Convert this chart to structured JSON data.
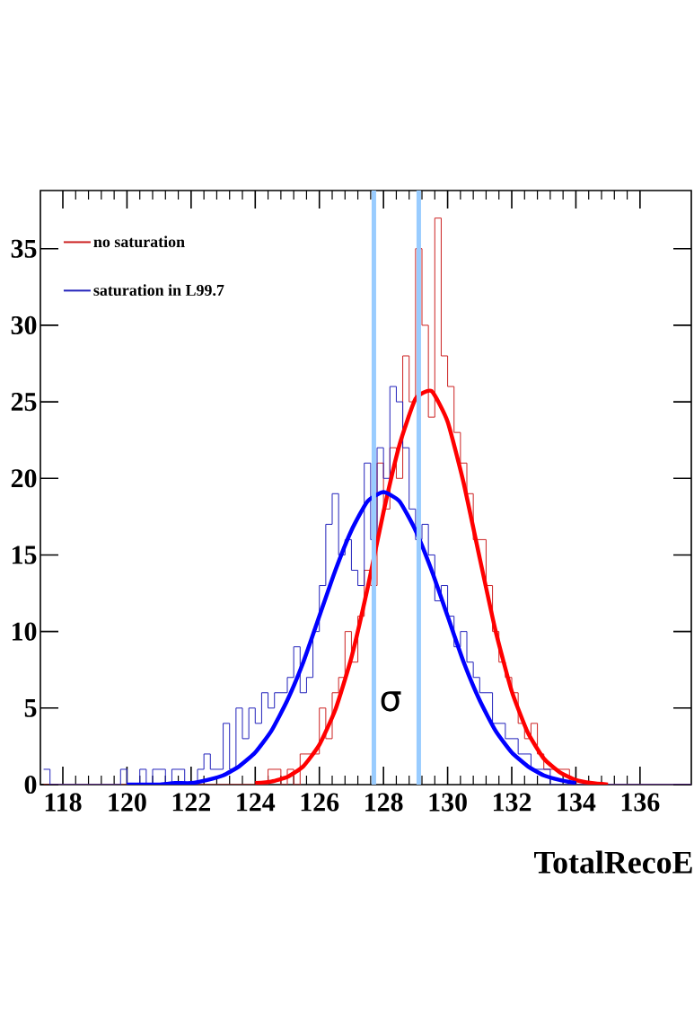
{
  "chart_data": {
    "type": "histogram",
    "xlabel": "TotalRecoE",
    "xlim": [
      117.3,
      137.6
    ],
    "ylim": [
      0,
      38.8
    ],
    "xticks": [
      118,
      120,
      122,
      124,
      126,
      128,
      130,
      132,
      134,
      136
    ],
    "yticks": [
      0,
      5,
      10,
      15,
      20,
      25,
      30,
      35
    ],
    "legend": "top left",
    "bins": [
      117.4,
      117.6,
      117.8,
      118.0,
      118.2,
      118.4,
      118.6,
      118.8,
      119.0,
      119.2,
      119.4,
      119.6,
      119.8,
      120.0,
      120.2,
      120.4,
      120.6,
      120.8,
      121.0,
      121.2,
      121.4,
      121.6,
      121.8,
      122.0,
      122.2,
      122.4,
      122.6,
      122.8,
      123.0,
      123.2,
      123.4,
      123.6,
      123.8,
      124.0,
      124.2,
      124.4,
      124.6,
      124.8,
      125.0,
      125.2,
      125.4,
      125.6,
      125.8,
      126.0,
      126.2,
      126.4,
      126.6,
      126.8,
      127.0,
      127.2,
      127.4,
      127.6,
      127.8,
      128.0,
      128.2,
      128.4,
      128.6,
      128.8,
      129.0,
      129.2,
      129.4,
      129.6,
      129.8,
      130.0,
      130.2,
      130.4,
      130.6,
      130.8,
      131.0,
      131.2,
      131.4,
      131.6,
      131.8,
      132.0,
      132.2,
      132.4,
      132.6,
      132.8,
      133.0,
      133.2,
      133.4,
      133.6,
      133.8,
      134.0,
      134.2,
      134.4,
      134.6,
      134.8,
      135.0,
      135.2,
      135.4,
      135.6,
      135.8,
      136.0,
      136.2,
      136.4,
      136.6,
      136.8,
      137.0,
      137.2,
      137.4,
      137.6
    ],
    "series": [
      {
        "name": "no saturation",
        "color": "#cc2222",
        "values": [
          0,
          0,
          0,
          0,
          0,
          0,
          0,
          0,
          0,
          0,
          0,
          0,
          0,
          0,
          0,
          0,
          0,
          0,
          0,
          0,
          0,
          0,
          0,
          0,
          0,
          0,
          0,
          0,
          0,
          0,
          0,
          0,
          0,
          0,
          0,
          1,
          1,
          0,
          1,
          0,
          2,
          2,
          2,
          5,
          3,
          6,
          7,
          10,
          8,
          11,
          14,
          13,
          21,
          18,
          22,
          20,
          28,
          25,
          35,
          30,
          24,
          37,
          28,
          26,
          23,
          21,
          19,
          16,
          16,
          13,
          10,
          8,
          7,
          6,
          4,
          3,
          4,
          2,
          1,
          1,
          1,
          1,
          0,
          0,
          0,
          0,
          0,
          0,
          0,
          0,
          0,
          0,
          0,
          0,
          0,
          0,
          0,
          0,
          0,
          0,
          0
        ]
      },
      {
        "name": "saturation in L99.7",
        "color": "#2222bb",
        "values": [
          1,
          0,
          0,
          0,
          0,
          0,
          0,
          0,
          0,
          0,
          0,
          0,
          1,
          0,
          0,
          1,
          0,
          1,
          1,
          0,
          1,
          1,
          0,
          0,
          1,
          2,
          1,
          1,
          4,
          1,
          5,
          3,
          5,
          4,
          6,
          5,
          6,
          6,
          7,
          9,
          6,
          7,
          10,
          13,
          17,
          19,
          15,
          16,
          14,
          13,
          21,
          16,
          22,
          20,
          26,
          25,
          22,
          18,
          16,
          17,
          15,
          12,
          13,
          11,
          9,
          10,
          8,
          7,
          6,
          6,
          4,
          4,
          3,
          3,
          2,
          2,
          1,
          1,
          1,
          0,
          0,
          0,
          0,
          0,
          0,
          0,
          0,
          0,
          0,
          0,
          0,
          0,
          0,
          0,
          0,
          0,
          0,
          0,
          0,
          0,
          0
        ]
      },
      {
        "type": "line",
        "color": "#ff0000",
        "x": [
          124,
          124.5,
          125,
          125.5,
          126,
          126.5,
          127,
          127.5,
          128,
          128.5,
          129,
          129.5,
          130,
          130.5,
          131,
          131.5,
          132,
          132.5,
          133,
          133.5,
          134,
          134.5,
          135
        ],
        "values": [
          0.1,
          0.2,
          0.5,
          1.2,
          2.6,
          4.9,
          8.3,
          12.8,
          17.8,
          22.2,
          25.2,
          25.7,
          23.7,
          19.7,
          14.8,
          10.0,
          6.1,
          3.4,
          1.7,
          0.8,
          0.3,
          0.1,
          0.0
        ]
      },
      {
        "type": "line",
        "color": "#0000ff",
        "x": [
          120,
          120.5,
          121,
          121.5,
          122,
          122.5,
          123,
          123.5,
          124,
          124.5,
          125,
          125.5,
          126,
          126.5,
          127,
          127.5,
          128,
          128.5,
          129,
          129.5,
          130,
          130.5,
          131,
          131.5,
          132,
          132.5,
          133,
          133.5,
          134
        ],
        "values": [
          0.0,
          0.0,
          0.0,
          0.1,
          0.1,
          0.3,
          0.6,
          1.2,
          2.1,
          3.5,
          5.5,
          8.0,
          11.0,
          14.0,
          16.6,
          18.5,
          19.1,
          18.5,
          16.6,
          14.0,
          11.0,
          8.0,
          5.5,
          3.5,
          2.1,
          1.2,
          0.6,
          0.3,
          0.1
        ]
      }
    ],
    "ref_lines": [
      {
        "axis": "x",
        "value": 127.7,
        "color": "#99ccff"
      },
      {
        "axis": "x",
        "value": 129.1,
        "color": "#99ccff"
      }
    ],
    "annotations": [
      "σ"
    ]
  }
}
